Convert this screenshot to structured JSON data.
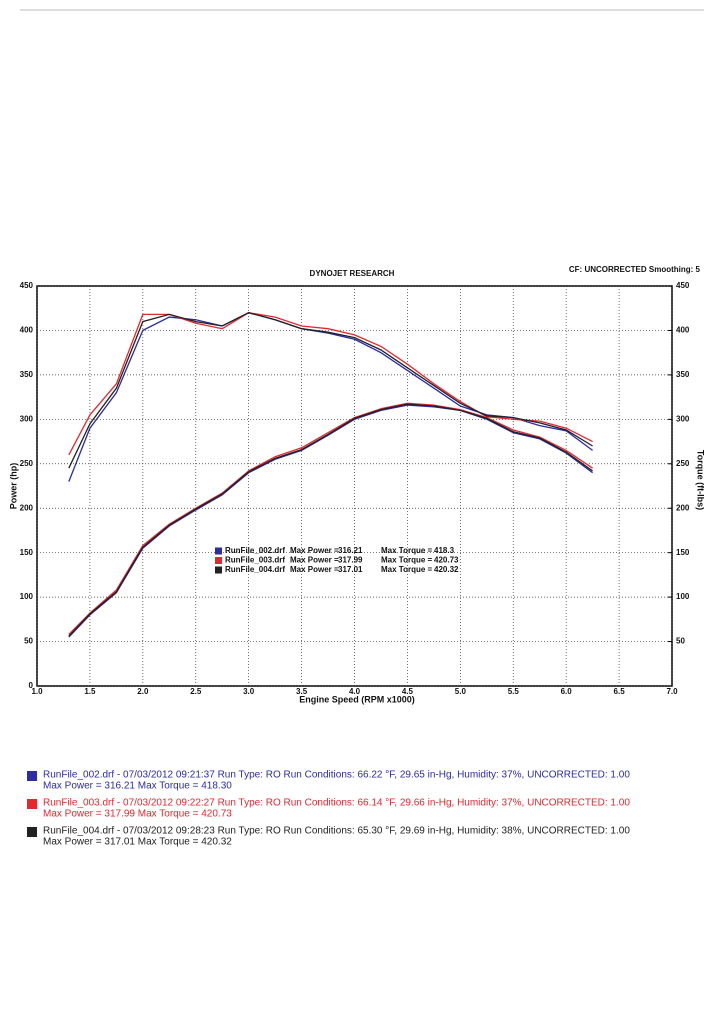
{
  "chart_data": {
    "type": "line",
    "title": "DYNOJET RESEARCH",
    "subtitle": "CF: UNCORRECTED  Smoothing: 5",
    "x_label": "Engine Speed (RPM x1000)",
    "y_label": "Power (hp)",
    "y2_label": "Torque (ft-lbs)",
    "x": [
      1.3,
      1.5,
      1.75,
      2.0,
      2.25,
      2.5,
      2.75,
      3.0,
      3.25,
      3.5,
      3.75,
      4.0,
      4.25,
      4.5,
      4.75,
      5.0,
      5.25,
      5.5,
      5.75,
      6.0,
      6.25
    ],
    "xlim": [
      1.0,
      7.0
    ],
    "xticks": [
      {
        "value": 1.0,
        "label": "1.0"
      },
      {
        "value": 1.5,
        "label": "1.5"
      },
      {
        "value": 2.0,
        "label": "2.0"
      },
      {
        "value": 2.5,
        "label": "2.5"
      },
      {
        "value": 3.0,
        "label": "3.0"
      },
      {
        "value": 3.5,
        "label": "3.5"
      },
      {
        "value": 4.0,
        "label": "4.0"
      },
      {
        "value": 4.5,
        "label": "4.5"
      },
      {
        "value": 5.0,
        "label": "5.0"
      },
      {
        "value": 5.5,
        "label": "5.5"
      },
      {
        "value": 6.0,
        "label": "6.0"
      },
      {
        "value": 6.5,
        "label": "6.5"
      },
      {
        "value": 7.0,
        "label": "7.0"
      }
    ],
    "ylim": [
      0,
      450
    ],
    "yticks": [
      0,
      50,
      100,
      150,
      200,
      250,
      300,
      350,
      400,
      450
    ],
    "y2lim": [
      0,
      450
    ],
    "y2ticks": [
      50,
      100,
      150,
      200,
      250,
      300,
      350,
      400,
      450
    ],
    "grid": true,
    "max_power_label": "Max Power =",
    "max_torque_label": "Max Torque =",
    "runs": [
      {
        "name": "RunFile_002.drf",
        "color": "#2b2ba6",
        "power": [
          55,
          80,
          105,
          155,
          180,
          198,
          215,
          240,
          255,
          265,
          282,
          300,
          310,
          316,
          314,
          310,
          300,
          285,
          278,
          262,
          240
        ],
        "torque": [
          230,
          290,
          330,
          400,
          415,
          412,
          405,
          420,
          412,
          402,
          397,
          390,
          375,
          355,
          335,
          315,
          305,
          302,
          293,
          287,
          265
        ],
        "max_power": 316.21,
        "max_torque": 418.3
      },
      {
        "name": "RunFile_003.drf",
        "color": "#e8262d",
        "power": [
          58,
          82,
          108,
          158,
          182,
          200,
          217,
          242,
          258,
          268,
          285,
          302,
          312,
          318,
          316,
          311,
          302,
          288,
          280,
          265,
          245
        ],
        "torque": [
          260,
          305,
          340,
          418,
          418,
          408,
          402,
          420,
          415,
          405,
          402,
          395,
          382,
          362,
          340,
          320,
          303,
          300,
          298,
          290,
          275
        ],
        "max_power": 317.99,
        "max_torque": 420.73
      },
      {
        "name": "RunFile_004.drf",
        "color": "#222222",
        "power": [
          56,
          81,
          106,
          156,
          181,
          199,
          216,
          241,
          256,
          266,
          283,
          301,
          311,
          317,
          315,
          310,
          301,
          286,
          279,
          263,
          242
        ],
        "torque": [
          245,
          295,
          335,
          410,
          418,
          410,
          405,
          420,
          412,
          402,
          398,
          392,
          378,
          358,
          338,
          318,
          304,
          302,
          296,
          288,
          270
        ],
        "max_power": 317.01,
        "max_torque": 420.32
      }
    ],
    "run_info": [
      {
        "line1": "RunFile_002.drf - 07/03/2012 09:21:37  Run Type: RO  Run Conditions: 66.22 °F, 29.65 in-Hg,  Humidity:  37%, UNCORRECTED: 1.00",
        "line2": "Max Power = 316.21  Max Torque = 418.30"
      },
      {
        "line1": "RunFile_003.drf - 07/03/2012 09:22:27  Run Type: RO  Run Conditions: 66.14 °F, 29.66 in-Hg,  Humidity:  37%, UNCORRECTED: 1.00",
        "line2": "Max Power = 317.99  Max Torque = 420.73"
      },
      {
        "line1": "RunFile_004.drf - 07/03/2012 09:28:23  Run Type: RO  Run Conditions: 65.30 °F, 29.69 in-Hg,  Humidity:  38%, UNCORRECTED: 1.00",
        "line2": "Max Power = 317.01  Max Torque = 420.32"
      }
    ]
  }
}
